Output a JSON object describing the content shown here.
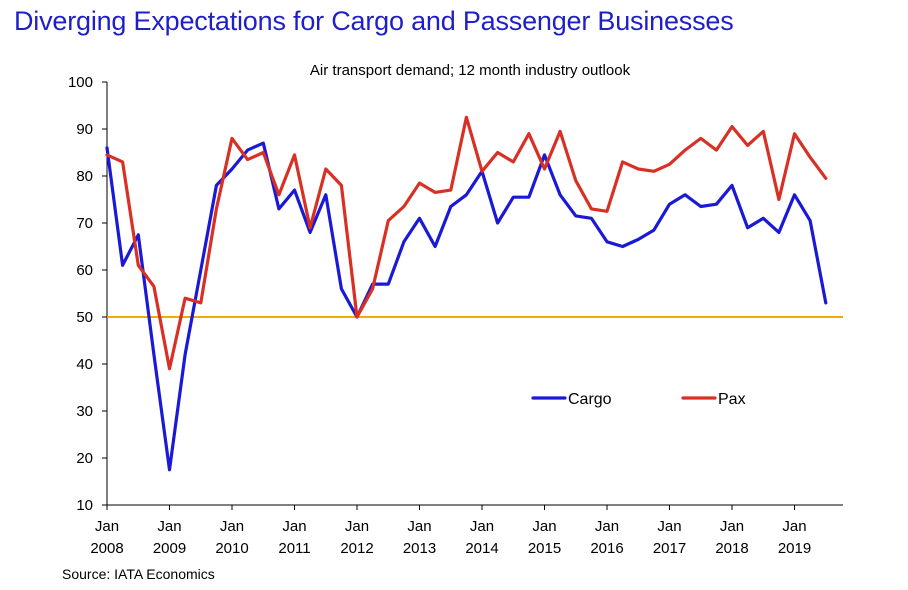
{
  "title": "Diverging Expectations for Cargo and Passenger Businesses",
  "source": "Source: IATA Economics",
  "colors": {
    "title": "#1f1fc8",
    "cargo": "#1a1ad6",
    "pax": "#d93025",
    "reference": "#f2a900"
  },
  "chart_data": {
    "type": "line",
    "subtitle": "Air transport demand; 12 month industry outlook",
    "ylim": [
      10,
      100
    ],
    "yticks": [
      10,
      20,
      30,
      40,
      50,
      60,
      70,
      80,
      90,
      100
    ],
    "xlim": [
      2008.0,
      2019.75
    ],
    "xticks": [
      {
        "x": 2008,
        "line1": "Jan",
        "line2": "2008"
      },
      {
        "x": 2009,
        "line1": "Jan",
        "line2": "2009"
      },
      {
        "x": 2010,
        "line1": "Jan",
        "line2": "2010"
      },
      {
        "x": 2011,
        "line1": "Jan",
        "line2": "2011"
      },
      {
        "x": 2012,
        "line1": "Jan",
        "line2": "2012"
      },
      {
        "x": 2013,
        "line1": "Jan",
        "line2": "2013"
      },
      {
        "x": 2014,
        "line1": "Jan",
        "line2": "2014"
      },
      {
        "x": 2015,
        "line1": "Jan",
        "line2": "2015"
      },
      {
        "x": 2016,
        "line1": "Jan",
        "line2": "2016"
      },
      {
        "x": 2017,
        "line1": "Jan",
        "line2": "2017"
      },
      {
        "x": 2018,
        "line1": "Jan",
        "line2": "2018"
      },
      {
        "x": 2019,
        "line1": "Jan",
        "line2": "2019"
      }
    ],
    "x": [
      2008.0,
      2008.25,
      2008.5,
      2008.75,
      2009.0,
      2009.25,
      2009.5,
      2009.75,
      2010.0,
      2010.25,
      2010.5,
      2010.75,
      2011.0,
      2011.25,
      2011.5,
      2011.75,
      2012.0,
      2012.25,
      2012.5,
      2012.75,
      2013.0,
      2013.25,
      2013.5,
      2013.75,
      2014.0,
      2014.25,
      2014.5,
      2014.75,
      2015.0,
      2015.25,
      2015.5,
      2015.75,
      2016.0,
      2016.25,
      2016.5,
      2016.75,
      2017.0,
      2017.25,
      2017.5,
      2017.75,
      2018.0,
      2018.25,
      2018.5,
      2018.75,
      2019.0,
      2019.25,
      2019.5
    ],
    "series": [
      {
        "name": "Cargo",
        "color": "#1a1ad6",
        "values": [
          86,
          61,
          67.5,
          42,
          17.5,
          42,
          60,
          78,
          81.5,
          85.5,
          87,
          73,
          77,
          68,
          76,
          56,
          50,
          57,
          57,
          66,
          71,
          65,
          73.5,
          76,
          81,
          70,
          75.5,
          75.5,
          84.5,
          76,
          71.5,
          71,
          66,
          65,
          66.5,
          68.5,
          74,
          76,
          73.5,
          74,
          78,
          69,
          71,
          68,
          76,
          70.5,
          53
        ]
      },
      {
        "name": "Pax",
        "color": "#d93025",
        "values": [
          84.5,
          83,
          61,
          56.5,
          39,
          54,
          53,
          73,
          88,
          83.5,
          85,
          76,
          84.5,
          69,
          81.5,
          78,
          50,
          56,
          70.5,
          73.5,
          78.5,
          76.5,
          77,
          92.5,
          81,
          85,
          83,
          89,
          81.5,
          89.5,
          79,
          73,
          72.5,
          83,
          81.5,
          81,
          82.5,
          85.5,
          88,
          85.5,
          90.5,
          86.5,
          89.5,
          75,
          89,
          84,
          79.5
        ]
      }
    ],
    "reference_line": 50,
    "legend_position": "center-right, inside plot",
    "grid": false
  }
}
